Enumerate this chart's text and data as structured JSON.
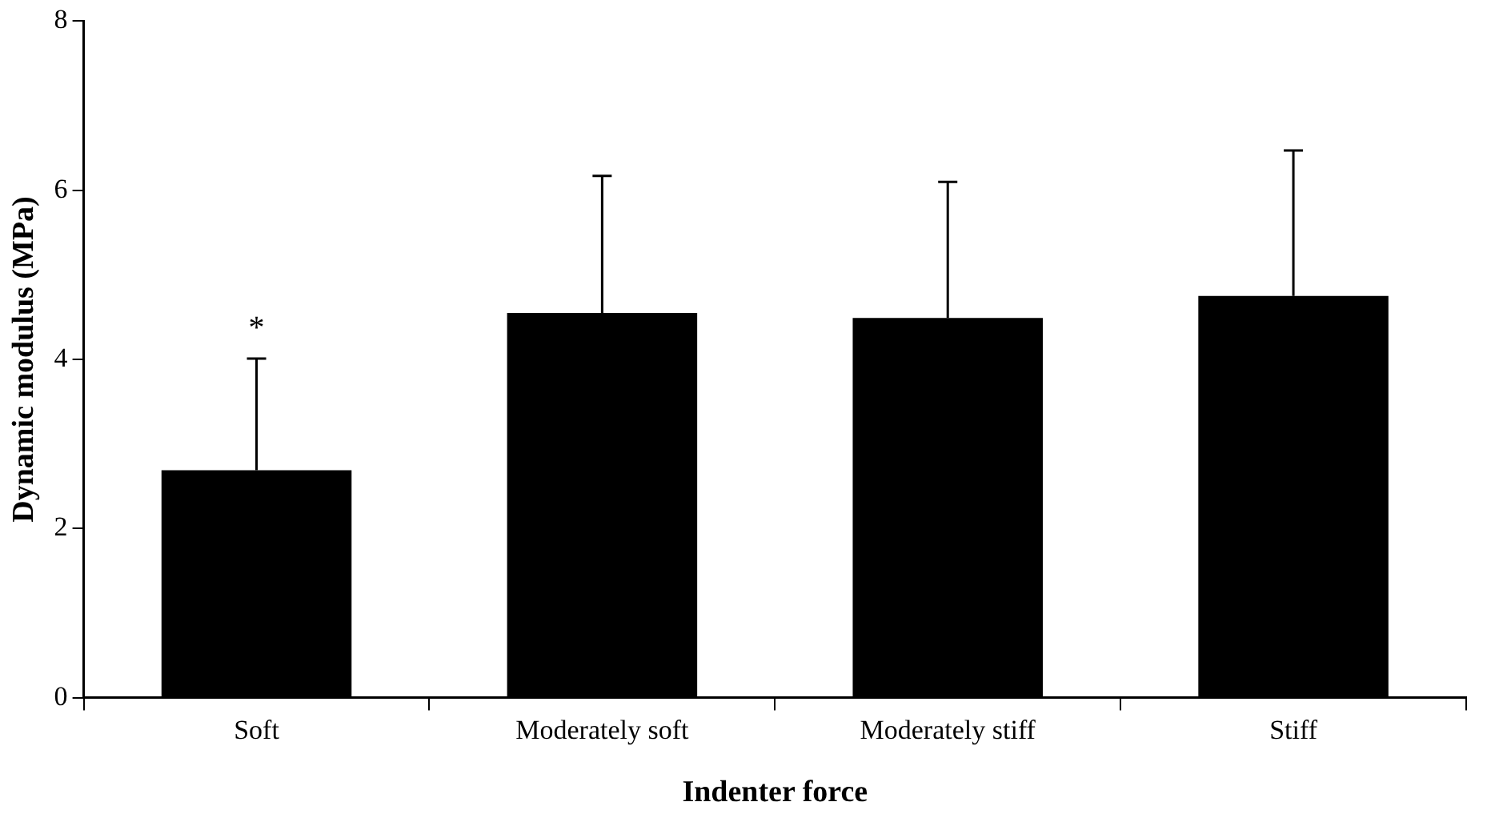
{
  "chart_data": {
    "type": "bar",
    "xlabel": "Indenter force",
    "ylabel": "Dynamic modulus (MPa)",
    "categories": [
      "Soft",
      "Moderately soft",
      "Moderately stiff",
      "Stiff"
    ],
    "values": [
      2.69,
      4.55,
      4.49,
      4.75
    ],
    "color": "#000000",
    "errors": [
      [
        2.69,
        4.01
      ],
      [
        4.55,
        6.17
      ],
      [
        4.49,
        6.1
      ],
      [
        4.75,
        6.47
      ]
    ],
    "ylim": [
      0,
      8
    ],
    "yticks": [
      0,
      2,
      4,
      6,
      8
    ],
    "grid": false,
    "legend": false,
    "annotations": [
      "*"
    ]
  }
}
